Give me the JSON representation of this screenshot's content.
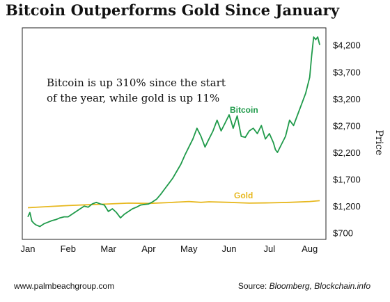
{
  "chart_data": {
    "type": "line",
    "title": "Bitcoin Outperforms Gold Since January",
    "ylabel": "Price",
    "annotation_lines": [
      "Bitcoin is up 310% since the start",
      "of the year, while gold is up 11%"
    ],
    "x_tick_labels": [
      "Jan",
      "Feb",
      "Mar",
      "Apr",
      "May",
      "Jun",
      "Jul",
      "Aug"
    ],
    "y_ticks": [
      700,
      1200,
      1700,
      2200,
      2700,
      3200,
      3700,
      4200
    ],
    "y_tick_labels": [
      "$700",
      "$1,200",
      "$1,700",
      "$2,200",
      "$2,700",
      "$3,200",
      "$3,700",
      "$4,200"
    ],
    "ylim": [
      580,
      4520
    ],
    "xlim": [
      0,
      7.3
    ],
    "grid": false,
    "legend": "inline labels",
    "series": [
      {
        "name": "Bitcoin",
        "color": "#1f9a4a",
        "x": [
          0,
          0.05,
          0.1,
          0.15,
          0.2,
          0.3,
          0.4,
          0.5,
          0.6,
          0.7,
          0.8,
          0.9,
          1.0,
          1.1,
          1.2,
          1.3,
          1.4,
          1.5,
          1.6,
          1.7,
          1.8,
          1.9,
          2.0,
          2.1,
          2.2,
          2.3,
          2.4,
          2.5,
          2.6,
          2.7,
          2.8,
          2.9,
          3.0,
          3.1,
          3.2,
          3.3,
          3.4,
          3.5,
          3.6,
          3.7,
          3.8,
          3.9,
          4.0,
          4.1,
          4.2,
          4.3,
          4.4,
          4.5,
          4.6,
          4.7,
          4.8,
          4.9,
          5.0,
          5.05,
          5.1,
          5.2,
          5.3,
          5.4,
          5.5,
          5.6,
          5.7,
          5.8,
          5.9,
          6.0,
          6.1,
          6.15,
          6.2,
          6.3,
          6.4,
          6.5,
          6.6,
          6.7,
          6.8,
          6.9,
          7.0,
          7.05,
          7.1,
          7.15,
          7.2,
          7.25
        ],
        "y": [
          1000,
          1080,
          920,
          880,
          850,
          820,
          870,
          900,
          930,
          950,
          980,
          1000,
          1000,
          1050,
          1100,
          1150,
          1200,
          1180,
          1240,
          1270,
          1240,
          1220,
          1100,
          1150,
          1080,
          980,
          1050,
          1100,
          1150,
          1180,
          1220,
          1230,
          1240,
          1280,
          1330,
          1420,
          1520,
          1620,
          1720,
          1850,
          1980,
          2150,
          2300,
          2450,
          2650,
          2500,
          2300,
          2450,
          2600,
          2800,
          2600,
          2750,
          2900,
          2780,
          2650,
          2880,
          2500,
          2480,
          2600,
          2650,
          2550,
          2700,
          2450,
          2550,
          2380,
          2250,
          2200,
          2350,
          2500,
          2800,
          2700,
          2900,
          3100,
          3300,
          3600,
          4000,
          4350,
          4300,
          4350,
          4200
        ]
      },
      {
        "name": "Gold",
        "color": "#e7b81f",
        "x": [
          0,
          0.5,
          1.0,
          1.5,
          2.0,
          2.5,
          3.0,
          3.5,
          4.0,
          4.3,
          4.5,
          5.0,
          5.5,
          6.0,
          6.5,
          7.0,
          7.25
        ],
        "y": [
          1170,
          1190,
          1210,
          1225,
          1240,
          1255,
          1250,
          1265,
          1285,
          1270,
          1280,
          1270,
          1255,
          1260,
          1270,
          1285,
          1300
        ]
      }
    ]
  },
  "footer": {
    "left": "www.palmbeachgroup.com",
    "right_prefix": "Source: ",
    "right_source": "Bloomberg, Blockchain.info"
  }
}
